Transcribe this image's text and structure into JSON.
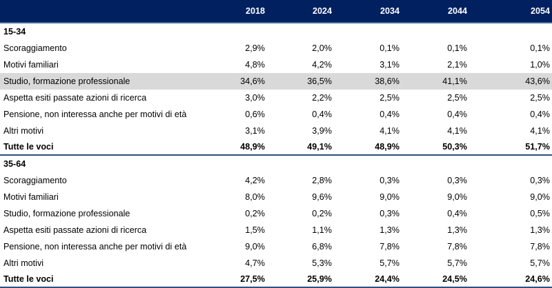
{
  "table": {
    "columns": [
      "",
      "2018",
      "2024",
      "2034",
      "2044",
      "2054"
    ],
    "highlight_color": "#d9d9d9",
    "header_color": "#002060",
    "groups": [
      {
        "label": "15-34",
        "rows": [
          {
            "label": "Scoraggiamento",
            "values": [
              "2,9%",
              "2,0%",
              "0,1%",
              "0,1%",
              "0,1%"
            ]
          },
          {
            "label": "Motivi familiari",
            "values": [
              "4,8%",
              "4,2%",
              "3,1%",
              "2,1%",
              "1,0%"
            ]
          },
          {
            "label": "Studio, formazione professionale",
            "values": [
              "34,6%",
              "36,5%",
              "38,6%",
              "41,1%",
              "43,6%"
            ],
            "highlighted": true
          },
          {
            "label": "Aspetta esiti passate azioni di ricerca",
            "values": [
              "3,0%",
              "2,2%",
              "2,5%",
              "2,5%",
              "2,5%"
            ]
          },
          {
            "label": "Pensione, non interessa anche per motivi di età",
            "values": [
              "0,6%",
              "0,4%",
              "0,4%",
              "0,4%",
              "0,4%"
            ]
          },
          {
            "label": "Altri motivi",
            "values": [
              "3,1%",
              "3,9%",
              "4,1%",
              "4,1%",
              "4,1%"
            ]
          }
        ],
        "total": {
          "label": "Tutte le voci",
          "values": [
            "48,9%",
            "49,1%",
            "48,9%",
            "50,3%",
            "51,7%"
          ]
        }
      },
      {
        "label": "35-64",
        "rows": [
          {
            "label": "Scoraggiamento",
            "values": [
              "4,2%",
              "2,8%",
              "0,3%",
              "0,3%",
              "0,3%"
            ]
          },
          {
            "label": "Motivi familiari",
            "values": [
              "8,0%",
              "9,6%",
              "9,0%",
              "9,0%",
              "9,0%"
            ]
          },
          {
            "label": "Studio, formazione professionale",
            "values": [
              "0,2%",
              "0,2%",
              "0,3%",
              "0,4%",
              "0,5%"
            ]
          },
          {
            "label": "Aspetta esiti passate azioni di ricerca",
            "values": [
              "1,5%",
              "1,1%",
              "1,3%",
              "1,3%",
              "1,3%"
            ]
          },
          {
            "label": "Pensione, non interessa anche per motivi di età",
            "values": [
              "9,0%",
              "6,8%",
              "7,8%",
              "7,8%",
              "7,8%"
            ]
          },
          {
            "label": "Altri motivi",
            "values": [
              "4,7%",
              "5,3%",
              "5,7%",
              "5,7%",
              "5,7%"
            ]
          }
        ],
        "total": {
          "label": "Tutte le voci",
          "values": [
            "27,5%",
            "25,9%",
            "24,4%",
            "24,5%",
            "24,6%"
          ]
        }
      }
    ]
  }
}
